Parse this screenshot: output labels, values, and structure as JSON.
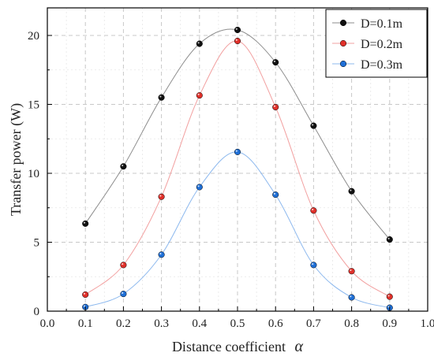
{
  "chart_data": {
    "type": "scatter",
    "title": "",
    "xlabel": "Distance coefficient",
    "xlabel_symbol": "α",
    "ylabel": "Transfer power (W)",
    "xlim": [
      0.0,
      1.0
    ],
    "ylim": [
      0,
      22
    ],
    "x_ticks": [
      "0.0",
      "0.1",
      "0.2",
      "0.3",
      "0.4",
      "0.5",
      "0.6",
      "0.7",
      "0.8",
      "0.9",
      "1.0"
    ],
    "y_ticks": [
      "0",
      "5",
      "10",
      "15",
      "20"
    ],
    "grid": true,
    "legend_position": "top-right",
    "x": [
      0.1,
      0.2,
      0.3,
      0.4,
      0.5,
      0.6,
      0.7,
      0.8,
      0.9
    ],
    "series": [
      {
        "name": "D=0.1m",
        "color": "#111111",
        "line_color": "#8c8c8c",
        "values": [
          6.35,
          10.5,
          15.5,
          19.4,
          20.4,
          18.05,
          13.45,
          8.7,
          5.2
        ]
      },
      {
        "name": "D=0.2m",
        "color": "#e0302a",
        "line_color": "#f2a0a0",
        "values": [
          1.2,
          3.35,
          8.3,
          15.65,
          19.6,
          14.8,
          7.3,
          2.9,
          1.05
        ]
      },
      {
        "name": "D=0.3m",
        "color": "#1f6fd6",
        "line_color": "#8cb8ee",
        "values": [
          0.3,
          1.25,
          4.1,
          9.0,
          11.55,
          8.45,
          3.35,
          1.0,
          0.25
        ]
      }
    ]
  }
}
